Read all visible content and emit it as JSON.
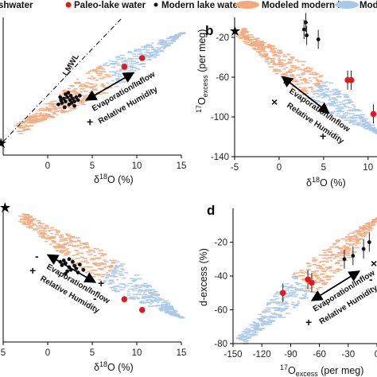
{
  "legend": {
    "items": [
      {
        "label": "shwater",
        "marker": "star",
        "color": "#111111"
      },
      {
        "label": "Paleo-lake water",
        "marker": "dot",
        "color": "#e31a1c"
      },
      {
        "label": "Modern lake water",
        "marker": "dot",
        "color": "#111111"
      },
      {
        "label": "Modeled modern lake",
        "marker": "ellipse",
        "color": "#f4b183"
      },
      {
        "label": "Modeled p",
        "marker": "ellipse",
        "color": "#9fc5e8"
      }
    ]
  },
  "colors": {
    "modern_cloud": "#f2a97e",
    "paleo_cloud": "#a9c8e8",
    "paleo_point": "#e31a1c",
    "modern_point": "#111111"
  },
  "chart_data": [
    {
      "panel": "a",
      "type": "scatter",
      "title": "",
      "xlabel": "δ18O (%)",
      "ylabel": "",
      "xlim": [
        -5,
        15
      ],
      "ylim": [
        -95,
        0
      ],
      "x_ticks": [
        "0",
        "5",
        "10",
        "15"
      ],
      "y_ticks": [],
      "lines": [
        {
          "label": "LMWL",
          "points": [
            [
              -4.6,
              -92
            ],
            [
              5.6,
              -2
            ]
          ]
        }
      ],
      "annotations": [
        "Evaporation/Inflow",
        "Relative Humidity",
        "+",
        "-"
      ],
      "series": [
        {
          "name": "Modern lake water",
          "color": "#111111",
          "points": [
            [
              1.5,
              -57
            ],
            [
              1.8,
              -56
            ],
            [
              2.0,
              -58
            ],
            [
              2.2,
              -55
            ],
            [
              2.5,
              -57
            ],
            [
              2.8,
              -56
            ],
            [
              3.0,
              -58
            ],
            [
              3.2,
              -55
            ],
            [
              1.6,
              -59
            ],
            [
              2.4,
              -60
            ],
            [
              2.6,
              -54
            ],
            [
              3.4,
              -57
            ],
            [
              1.2,
              -60
            ],
            [
              2.0,
              -53
            ],
            [
              3.0,
              -61
            ],
            [
              1.9,
              -62
            ],
            [
              2.3,
              -52
            ],
            [
              2.7,
              -59
            ],
            [
              3.6,
              -54
            ],
            [
              1.4,
              -55
            ]
          ]
        },
        {
          "name": "Paleo-lake water",
          "color": "#e31a1c",
          "points": [
            [
              8.6,
              -34
            ],
            [
              10.6,
              -28
            ]
          ]
        }
      ]
    },
    {
      "panel": "b",
      "type": "scatter",
      "title": "",
      "xlabel": "δ18O (%)",
      "ylabel": "17Oexcess (per meg)",
      "xlim": [
        -5,
        11
      ],
      "ylim": [
        -140,
        0
      ],
      "x_ticks": [
        "-5",
        "0",
        "5",
        "10"
      ],
      "y_ticks": [
        "-20",
        "-60",
        "-100",
        "-140"
      ],
      "annotations": [
        "Evaporation/Inflow",
        "Relative Humidity",
        "+",
        "-",
        "×"
      ],
      "series": [
        {
          "name": "Modern lake water",
          "color": "#111111",
          "points": [
            [
              2.8,
              -12
            ],
            [
              3.1,
              -18
            ],
            [
              4.4,
              -22
            ],
            [
              3.0,
              -5
            ]
          ]
        },
        {
          "name": "Paleo-lake water",
          "color": "#e31a1c",
          "points": [
            [
              7.7,
              -63
            ],
            [
              8.1,
              -63
            ],
            [
              10.6,
              -97
            ]
          ]
        }
      ]
    },
    {
      "panel": "c",
      "type": "scatter",
      "title": "",
      "xlabel": "δ18O (%)",
      "ylabel": "",
      "xlim": [
        -5,
        15
      ],
      "ylim": [
        -15,
        5
      ],
      "x_ticks": [
        "5",
        "0",
        "5",
        "10",
        "15"
      ],
      "y_ticks": [],
      "annotations": [
        "Evaporation/Inflow",
        "Relative Humidity",
        "+",
        "-"
      ],
      "series": [
        {
          "name": "Modern lake water",
          "color": "#111111",
          "points": [
            [
              1.6,
              -3.5
            ],
            [
              2.0,
              -3.2
            ],
            [
              2.4,
              -3.8
            ],
            [
              2.8,
              -3.0
            ],
            [
              3.2,
              -4.0
            ],
            [
              2.2,
              -4.4
            ],
            [
              1.8,
              -2.8
            ],
            [
              3.0,
              -3.6
            ],
            [
              3.6,
              -3.4
            ],
            [
              2.6,
              -4.2
            ],
            [
              1.4,
              -3.0
            ],
            [
              2.4,
              -2.6
            ],
            [
              3.4,
              -4.6
            ],
            [
              4.0,
              -4.2
            ],
            [
              2.0,
              -4.8
            ]
          ]
        },
        {
          "name": "Paleo-lake water",
          "color": "#e31a1c",
          "points": [
            [
              8.6,
              -8.6
            ],
            [
              10.6,
              -10.2
            ]
          ]
        }
      ]
    },
    {
      "panel": "d",
      "type": "scatter",
      "title": "",
      "xlabel": "17Oexcess (per meg)",
      "ylabel": "d-excess (%)",
      "xlim": [
        -150,
        0
      ],
      "ylim": [
        -80,
        0
      ],
      "x_ticks": [
        "-150",
        "-120",
        "-90",
        "-60",
        "-30",
        "0"
      ],
      "y_ticks": [
        "-20",
        "-40",
        "-60",
        "-80"
      ],
      "annotations": [
        "Evaporation/Inflow",
        "Relative Humidity",
        "+",
        "-",
        "×"
      ],
      "series": [
        {
          "name": "Modern lake water",
          "color": "#111111",
          "points": [
            [
              -34,
              -30
            ],
            [
              -25,
              -28
            ],
            [
              -14,
              -24
            ],
            [
              -8,
              -20
            ]
          ]
        },
        {
          "name": "Paleo-lake water",
          "color": "#e31a1c",
          "points": [
            [
              -98,
              -50
            ],
            [
              -72,
              -42
            ],
            [
              -68,
              -44
            ]
          ]
        }
      ]
    }
  ],
  "texts": {
    "panel_b": "b",
    "panel_d": "d",
    "lmwl": "LMWL",
    "evap": "Evaporation/Inflow",
    "rh": "Relative Humidity",
    "plus": "+",
    "minus": "-",
    "cross": "×",
    "xlabel_a_pre": "δ",
    "xlabel_a_sup": "18",
    "xlabel_a_post": "O (%)",
    "ylabel_b_sup": "17",
    "ylabel_b_main": "O",
    "ylabel_b_sub": "excess",
    "ylabel_b_post": " (per meg)",
    "ylabel_d": "d-excess (%)",
    "xlabel_d_sup": "17",
    "xlabel_d_main": "O",
    "xlabel_d_sub": "excess",
    "xlabel_d_post": " (per meg)"
  }
}
